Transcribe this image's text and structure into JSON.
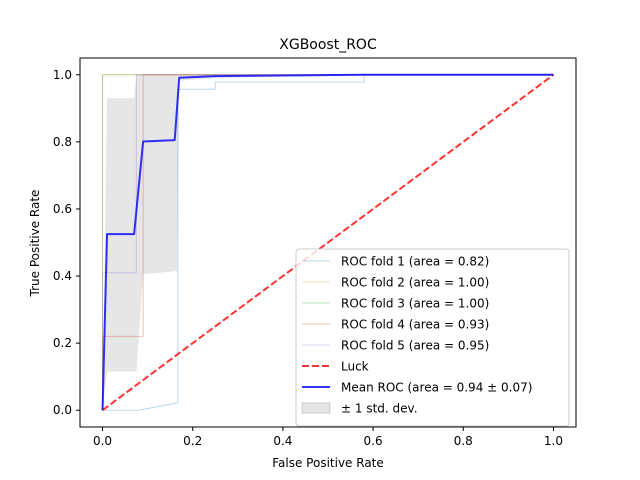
{
  "chart_data": {
    "type": "line",
    "title": "XGBoost_ROC",
    "xlabel": "False Positive Rate",
    "ylabel": "True Positive Rate",
    "xlim": [
      -0.05,
      1.05
    ],
    "ylim": [
      -0.05,
      1.05
    ],
    "xticks": [
      "0.0",
      "0.2",
      "0.4",
      "0.6",
      "0.8",
      "1.0"
    ],
    "yticks": [
      "0.0",
      "0.2",
      "0.4",
      "0.6",
      "0.8",
      "1.0"
    ],
    "grid": false,
    "legend_position": "lower-right",
    "series": [
      {
        "name": "ROC fold 1 (area = 0.82)",
        "color": "#1f77b4",
        "opacity": 0.3,
        "style": "solid",
        "x": [
          0.0,
          0.08,
          0.165,
          0.167,
          0.167,
          0.25,
          0.25,
          0.58,
          0.58,
          1.0
        ],
        "y": [
          0.0,
          0.0,
          0.022,
          0.022,
          0.957,
          0.957,
          0.978,
          0.978,
          1.0,
          1.0
        ]
      },
      {
        "name": "ROC fold 2 (area = 1.00)",
        "color": "#ff7f0e",
        "opacity": 0.3,
        "style": "solid",
        "x": [
          0.0,
          0.0,
          1.0
        ],
        "y": [
          0.0,
          1.0,
          1.0
        ]
      },
      {
        "name": "ROC fold 3 (area = 1.00)",
        "color": "#2ca02c",
        "opacity": 0.3,
        "style": "solid",
        "x": [
          0.0,
          0.0,
          1.0
        ],
        "y": [
          0.0,
          1.0,
          1.0
        ]
      },
      {
        "name": "ROC fold 4 (area = 0.93)",
        "color": "#d62728",
        "opacity": 0.3,
        "style": "solid",
        "x": [
          0.0,
          0.0,
          0.09,
          0.09,
          1.0
        ],
        "y": [
          0.0,
          0.22,
          0.22,
          1.0,
          1.0
        ]
      },
      {
        "name": "ROC fold 5 (area = 0.95)",
        "color": "#9467bd",
        "opacity": 0.3,
        "style": "solid",
        "x": [
          0.0,
          0.0,
          0.075,
          0.075,
          1.0
        ],
        "y": [
          0.0,
          0.41,
          0.41,
          1.0,
          1.0
        ]
      },
      {
        "name": "Luck",
        "color": "#ff0000",
        "opacity": 0.8,
        "style": "dashed",
        "x": [
          0.0,
          1.0
        ],
        "y": [
          0.0,
          1.0
        ]
      },
      {
        "name": "Mean ROC (area = 0.94 ± 0.07)",
        "color": "#0000ff",
        "opacity": 0.8,
        "style": "solid",
        "x": [
          0.0,
          0.01,
          0.07,
          0.09,
          0.16,
          0.17,
          0.25,
          0.58,
          1.0
        ],
        "y": [
          0.0,
          0.525,
          0.525,
          0.801,
          0.805,
          0.991,
          0.996,
          1.0,
          1.0
        ]
      }
    ],
    "band": {
      "name": "± 1 std. dev.",
      "color": "#808080",
      "opacity": 0.2,
      "x": [
        0.0,
        0.01,
        0.07,
        0.075,
        0.09,
        0.165,
        0.17,
        0.25,
        0.58,
        1.0
      ],
      "upper": [
        0.0,
        0.93,
        0.93,
        1.0,
        1.0,
        1.0,
        1.0,
        1.0,
        1.0,
        1.0
      ],
      "lower": [
        0.0,
        0.115,
        0.115,
        0.115,
        0.405,
        0.415,
        0.982,
        0.99,
        1.0,
        1.0
      ]
    }
  }
}
